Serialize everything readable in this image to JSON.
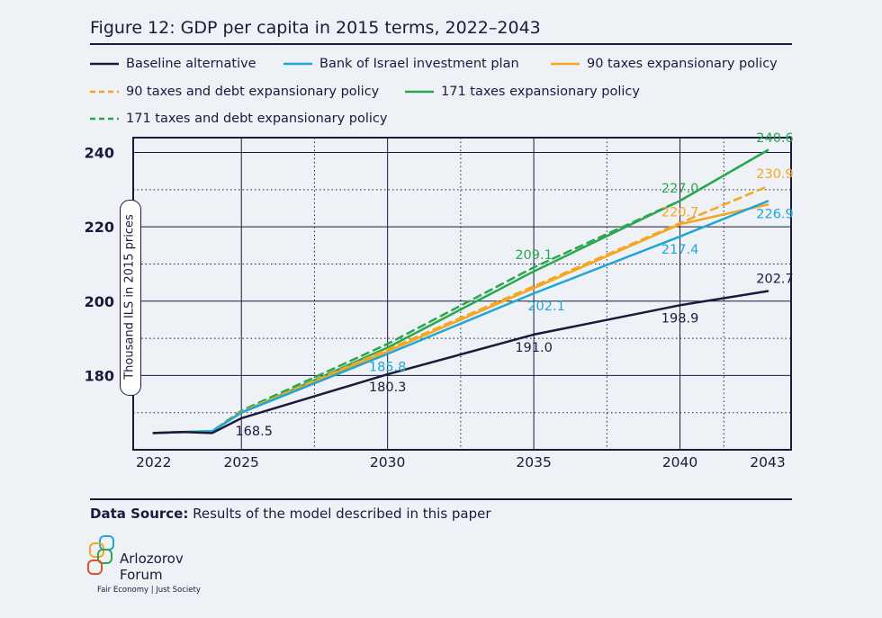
{
  "title": "Figure 12: GDP per capita in 2015 terms, 2022–2043",
  "source": {
    "label": "Data Source:",
    "text": "Results of the model described in this paper"
  },
  "logo": {
    "line1": "Arlozorov",
    "line2": "Forum",
    "tagline": "Fair Economy | Just Society"
  },
  "colors": {
    "navy": "#1b1a3d",
    "blue": "#1ea7d4",
    "orange": "#f5a623",
    "green": "#2aa84f"
  },
  "chart_data": {
    "type": "line",
    "title": "GDP per capita in 2015 terms, 2022–2043",
    "xlabel": "",
    "ylabel": "Thousand ILS in 2015 prices",
    "xlim": [
      2021.3,
      2043.8
    ],
    "ylim": [
      160,
      244
    ],
    "xticks": [
      2022,
      2025,
      2030,
      2035,
      2040,
      2043
    ],
    "yticks": [
      180,
      200,
      220,
      240
    ],
    "grid": true,
    "series": [
      {
        "name": "Baseline alternative",
        "color": "#1b1a3d",
        "dash": false,
        "x": [
          2022,
          2023,
          2024,
          2025,
          2030,
          2035,
          2040,
          2043
        ],
        "y": [
          164.5,
          164.8,
          164.5,
          168.5,
          180.3,
          191.0,
          198.9,
          202.7
        ]
      },
      {
        "name": "Bank of Israel investment plan",
        "color": "#1ea7d4",
        "dash": false,
        "x": [
          2022,
          2023,
          2024,
          2025,
          2030,
          2035,
          2040,
          2043
        ],
        "y": [
          164.5,
          164.8,
          165.0,
          170.0,
          185.8,
          202.1,
          217.4,
          226.9
        ]
      },
      {
        "name": "90 taxes expansionary policy",
        "color": "#f5a623",
        "dash": false,
        "x": [
          2022,
          2023,
          2024,
          2025,
          2030,
          2035,
          2040,
          2043
        ],
        "y": [
          164.5,
          164.8,
          165.0,
          170.0,
          186.5,
          203.5,
          220.7,
          226.0
        ]
      },
      {
        "name": "90 taxes and debt expansionary policy",
        "color": "#f5a623",
        "dash": true,
        "x": [
          2022,
          2023,
          2024,
          2025,
          2030,
          2035,
          2040,
          2043
        ],
        "y": [
          164.5,
          164.8,
          165.0,
          170.2,
          187.0,
          204.0,
          221.0,
          230.9
        ]
      },
      {
        "name": "171 taxes expansionary policy",
        "color": "#2aa84f",
        "dash": false,
        "x": [
          2022,
          2023,
          2024,
          2025,
          2030,
          2035,
          2040,
          2043
        ],
        "y": [
          164.5,
          164.8,
          165.0,
          170.0,
          187.5,
          208.0,
          227.0,
          240.6
        ]
      },
      {
        "name": "171 taxes and debt expansionary policy",
        "color": "#2aa84f",
        "dash": true,
        "x": [
          2022,
          2023,
          2024,
          2025,
          2030,
          2035,
          2040,
          2043
        ],
        "y": [
          164.5,
          164.8,
          165.0,
          170.5,
          188.5,
          209.1,
          227.0,
          240.6
        ]
      }
    ],
    "data_labels": [
      {
        "text": "168.5",
        "x": 2025,
        "y": 168.5,
        "series": 0,
        "pos": "below-right"
      },
      {
        "text": "180.3",
        "x": 2030,
        "y": 180.3,
        "series": 0,
        "pos": "below"
      },
      {
        "text": "191.0",
        "x": 2035,
        "y": 191.0,
        "series": 0,
        "pos": "below"
      },
      {
        "text": "198.9",
        "x": 2040,
        "y": 198.9,
        "series": 0,
        "pos": "below"
      },
      {
        "text": "202.7",
        "x": 2043,
        "y": 202.7,
        "series": 0,
        "pos": "above"
      },
      {
        "text": "185.8",
        "x": 2030,
        "y": 185.8,
        "series": 1,
        "pos": "below"
      },
      {
        "text": "202.1",
        "x": 2035,
        "y": 202.1,
        "series": 1,
        "pos": "below-right"
      },
      {
        "text": "217.4",
        "x": 2040,
        "y": 217.4,
        "series": 1,
        "pos": "below"
      },
      {
        "text": "226.9",
        "x": 2043,
        "y": 226.9,
        "series": 1,
        "pos": "below"
      },
      {
        "text": "220.7",
        "x": 2040,
        "y": 220.7,
        "series": 2,
        "pos": "above"
      },
      {
        "text": "230.9",
        "x": 2043,
        "y": 230.9,
        "series": 3,
        "pos": "above"
      },
      {
        "text": "209.1",
        "x": 2035,
        "y": 209.1,
        "series": 5,
        "pos": "above"
      },
      {
        "text": "227.0",
        "x": 2040,
        "y": 227.0,
        "series": 4,
        "pos": "above"
      },
      {
        "text": "240.6",
        "x": 2043,
        "y": 240.6,
        "series": 4,
        "pos": "above"
      }
    ]
  }
}
